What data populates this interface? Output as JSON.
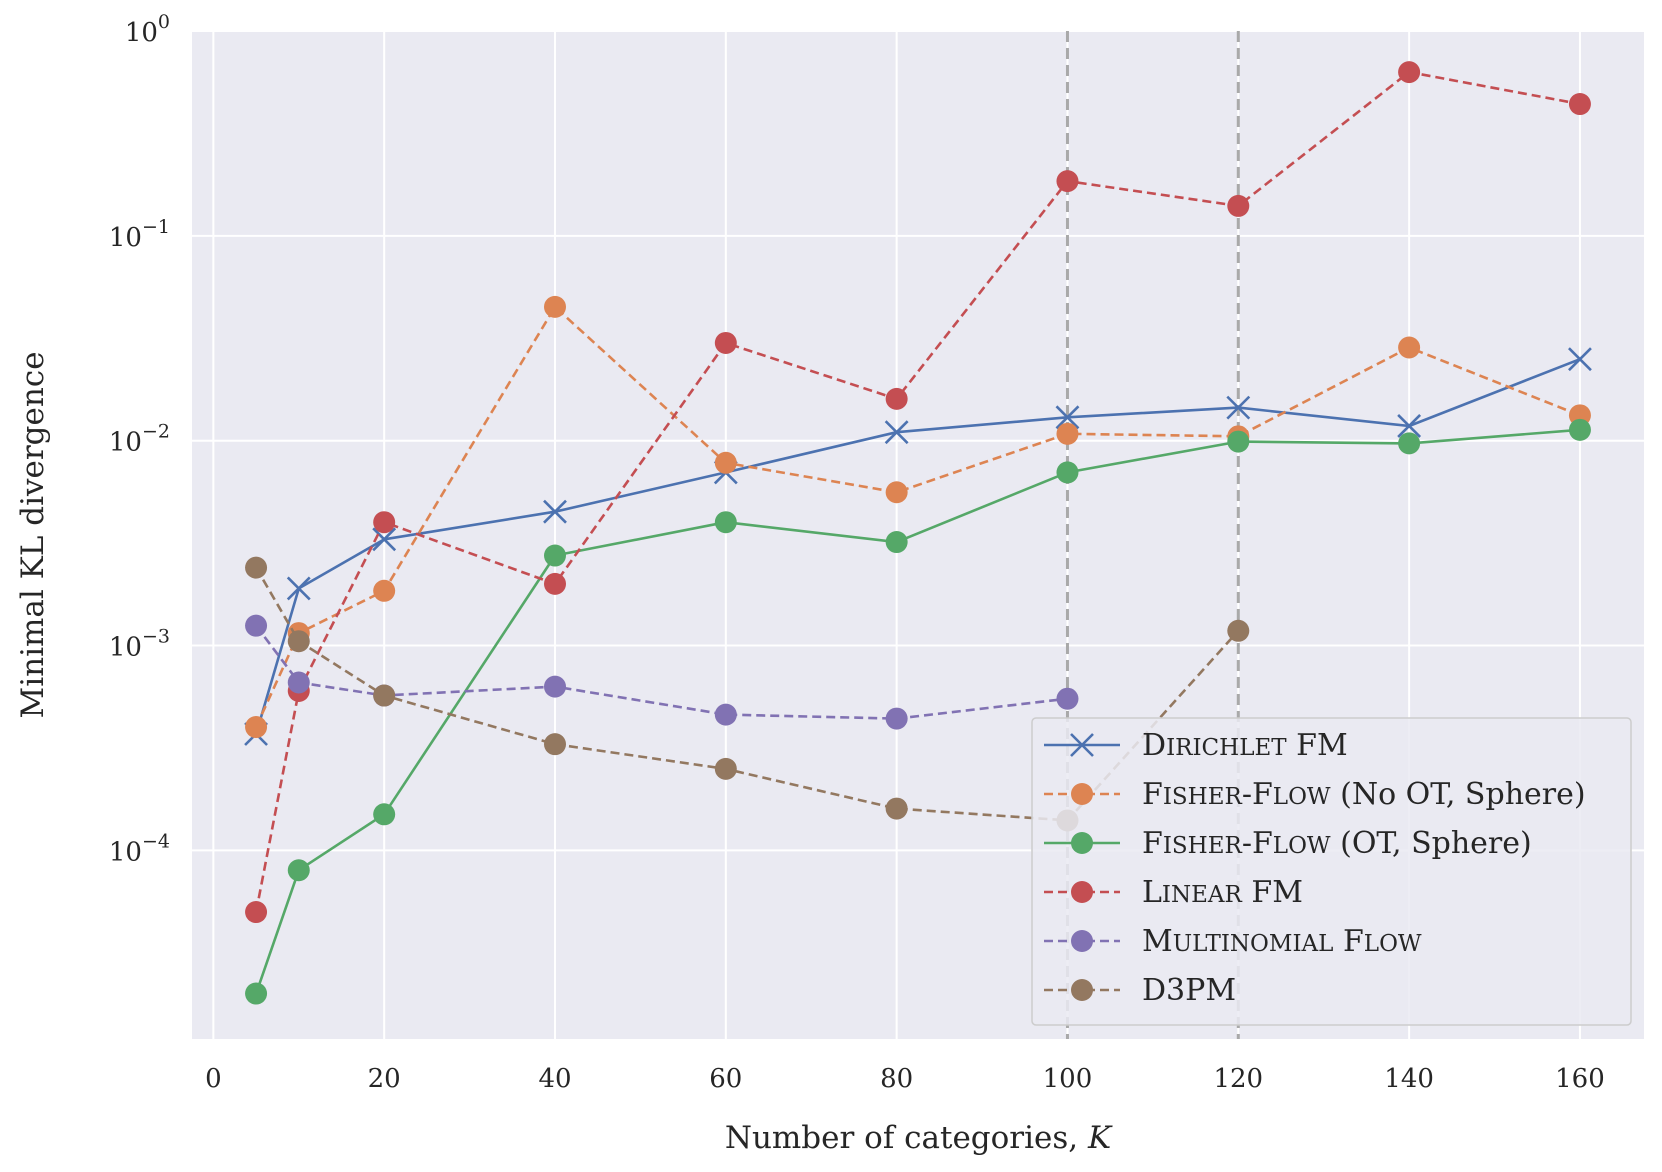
{
  "chart_data": {
    "type": "line",
    "xlabel": "Number of categories, K",
    "ylabel": "Minimal KL divergence",
    "xlim": [
      -2.5,
      167.5
    ],
    "ylim": [
      1.2e-05,
      1.0
    ],
    "yscale": "log",
    "xticks": [
      "0",
      "20",
      "40",
      "60",
      "80",
      "100",
      "120",
      "140",
      "160"
    ],
    "xtick_values": [
      0,
      20,
      40,
      60,
      80,
      100,
      120,
      140,
      160
    ],
    "yticks": [
      {
        "value": 1.0,
        "base": "10",
        "exp": "0"
      },
      {
        "value": 0.1,
        "base": "10",
        "exp": "−1"
      },
      {
        "value": 0.01,
        "base": "10",
        "exp": "−2"
      },
      {
        "value": 0.001,
        "base": "10",
        "exp": "−3"
      },
      {
        "value": 0.0001,
        "base": "10",
        "exp": "−4"
      }
    ],
    "grid": true,
    "vlines": [
      100,
      120
    ],
    "legend_position": "lower-right",
    "series": [
      {
        "name": "Dirichlet FM",
        "color": "#4c72b0",
        "linestyle": "solid",
        "marker": "x",
        "x": [
          5,
          10,
          20,
          40,
          60,
          80,
          100,
          120,
          140,
          160
        ],
        "y": [
          0.00037,
          0.0019,
          0.0033,
          0.0045,
          0.007,
          0.011,
          0.013,
          0.0145,
          0.0118,
          0.025
        ]
      },
      {
        "name": "Fisher-Flow (No OT, Sphere)",
        "color": "#dd8452",
        "linestyle": "dashed",
        "marker": "o",
        "x": [
          5,
          10,
          20,
          40,
          60,
          80,
          100,
          120,
          140,
          160
        ],
        "y": [
          0.0004,
          0.00115,
          0.00185,
          0.045,
          0.0078,
          0.0056,
          0.0108,
          0.0105,
          0.0285,
          0.0133
        ]
      },
      {
        "name": "Fisher-Flow (OT, Sphere)",
        "color": "#55a868",
        "linestyle": "solid",
        "marker": "o",
        "x": [
          5,
          10,
          20,
          40,
          60,
          80,
          100,
          120,
          140,
          160
        ],
        "y": [
          2e-05,
          8e-05,
          0.00015,
          0.00275,
          0.004,
          0.0032,
          0.007,
          0.0099,
          0.0097,
          0.0113
        ]
      },
      {
        "name": "Linear FM",
        "color": "#c44e52",
        "linestyle": "dashed",
        "marker": "o",
        "x": [
          5,
          10,
          20,
          40,
          60,
          80,
          100,
          120,
          140,
          160
        ],
        "y": [
          5e-05,
          0.0006,
          0.004,
          0.002,
          0.03,
          0.016,
          0.185,
          0.14,
          0.63,
          0.44
        ]
      },
      {
        "name": "Multinomial Flow",
        "color": "#8172b3",
        "linestyle": "dashed",
        "marker": "o",
        "x": [
          5,
          10,
          20,
          40,
          60,
          80,
          100
        ],
        "y": [
          0.00125,
          0.00066,
          0.00057,
          0.00063,
          0.00046,
          0.00044,
          0.00055
        ]
      },
      {
        "name": "D3PM",
        "color": "#937860",
        "linestyle": "dashed",
        "marker": "o",
        "x": [
          5,
          10,
          20,
          40,
          60,
          80,
          100,
          120
        ],
        "y": [
          0.0024,
          0.00105,
          0.00057,
          0.00033,
          0.00025,
          0.00016,
          0.00014,
          0.00118
        ]
      }
    ],
    "legend": [
      {
        "first": "D",
        "rest": "IRICHLET",
        "tail": " FM"
      },
      {
        "first": "F",
        "rest": "ISHER",
        "tail2first": "F",
        "tail2rest": "LOW",
        "tail": " (No OT, Sphere)"
      },
      {
        "first": "F",
        "rest": "ISHER",
        "tail2first": "F",
        "tail2rest": "LOW",
        "tail": " (OT, Sphere)"
      },
      {
        "first": "L",
        "rest": "INEAR",
        "tail": " FM"
      },
      {
        "first": "M",
        "rest": "ULTINOMIAL",
        "tail2first": "F",
        "tail2rest": "LOW",
        "tail": ""
      },
      {
        "first": "",
        "rest": "",
        "tail": "D3PM"
      }
    ],
    "colors": {
      "background": "#eaeaf2",
      "grid": "#ffffff",
      "vline": "#a9a9a9"
    }
  }
}
